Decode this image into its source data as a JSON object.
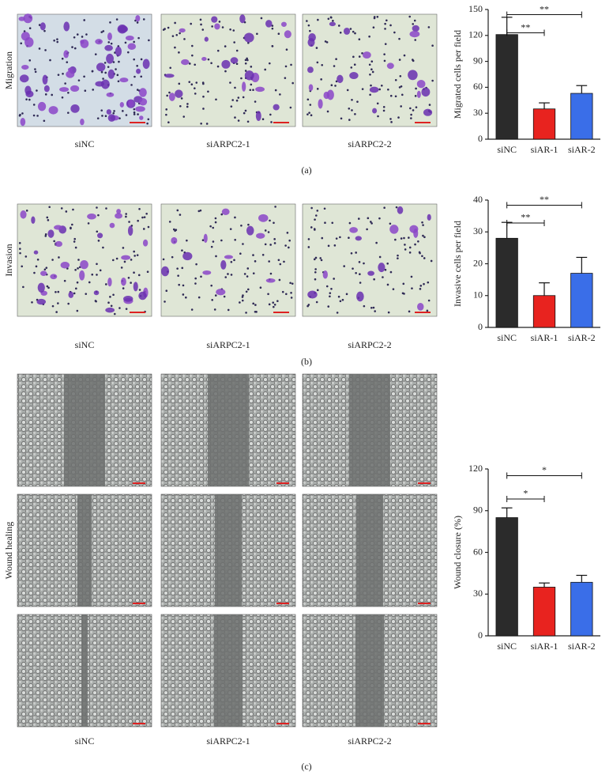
{
  "panels": [
    {
      "label": "(a)",
      "row_label": "Migration",
      "image_captions": [
        "siNC",
        "siARPC2-1",
        "siARPC2-2"
      ]
    },
    {
      "label": "(b)",
      "row_label": "Invasion",
      "image_captions": [
        "siNC",
        "siARPC2-1",
        "siARPC2-2"
      ]
    },
    {
      "label": "(c)",
      "row_label": "Wound healing",
      "image_captions": [
        "siNC",
        "siARPC2-1",
        "siARPC2-2"
      ]
    }
  ],
  "chart_data": [
    {
      "type": "bar",
      "y_label": "Migrated cells per field",
      "categories": [
        "siNC",
        "siAR-1",
        "siAR-2"
      ],
      "values": [
        121,
        35,
        53
      ],
      "errors": [
        20,
        7,
        9
      ],
      "colors": [
        "#2b2b2b",
        "#e8231f",
        "#3a6ee8"
      ],
      "ylim": [
        0,
        150
      ],
      "yticks": [
        0,
        30,
        60,
        90,
        120,
        150
      ],
      "significance": [
        {
          "from": "siNC",
          "to": "siAR-1",
          "label": "**"
        },
        {
          "from": "siNC",
          "to": "siAR-2",
          "label": "**"
        }
      ]
    },
    {
      "type": "bar",
      "y_label": "Invasive cells per field",
      "categories": [
        "siNC",
        "siAR-1",
        "siAR-2"
      ],
      "values": [
        28,
        10,
        17
      ],
      "errors": [
        5,
        4,
        5
      ],
      "colors": [
        "#2b2b2b",
        "#e8231f",
        "#3a6ee8"
      ],
      "ylim": [
        0,
        40
      ],
      "yticks": [
        0,
        10,
        20,
        30,
        40
      ],
      "significance": [
        {
          "from": "siNC",
          "to": "siAR-1",
          "label": "**"
        },
        {
          "from": "siNC",
          "to": "siAR-2",
          "label": "**"
        }
      ]
    },
    {
      "type": "bar",
      "y_label": "Wound closure (%)",
      "categories": [
        "siNC",
        "siAR-1",
        "siAR-2"
      ],
      "values": [
        85,
        35,
        38.5
      ],
      "errors": [
        7,
        3,
        5
      ],
      "colors": [
        "#2b2b2b",
        "#e8231f",
        "#3a6ee8"
      ],
      "ylim": [
        0,
        120
      ],
      "yticks": [
        0,
        30,
        60,
        90,
        120
      ],
      "significance": [
        {
          "from": "siNC",
          "to": "siAR-1",
          "label": "*"
        },
        {
          "from": "siNC",
          "to": "siAR-2",
          "label": "*"
        }
      ]
    }
  ]
}
